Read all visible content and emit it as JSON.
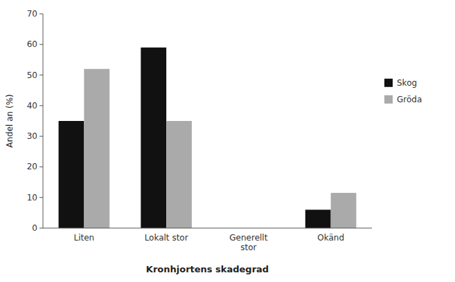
{
  "chart_data": {
    "type": "bar",
    "xlabel": "Kronhjortens skadegrad",
    "ylabel": "Andel an (%)",
    "categories": [
      "Liten",
      "Lokalt stor",
      "Generellt\nstor",
      "Okänd"
    ],
    "series": [
      {
        "name": "Skog",
        "color": "#111111",
        "values": [
          35,
          59,
          0,
          6
        ]
      },
      {
        "name": "Gröda",
        "color": "#aaaaaa",
        "values": [
          52,
          35,
          0,
          11.5
        ]
      }
    ],
    "ylim": [
      0,
      70
    ],
    "yticks": [
      0,
      10,
      20,
      30,
      40,
      50,
      60,
      70
    ],
    "grid": false,
    "legend": "right"
  }
}
